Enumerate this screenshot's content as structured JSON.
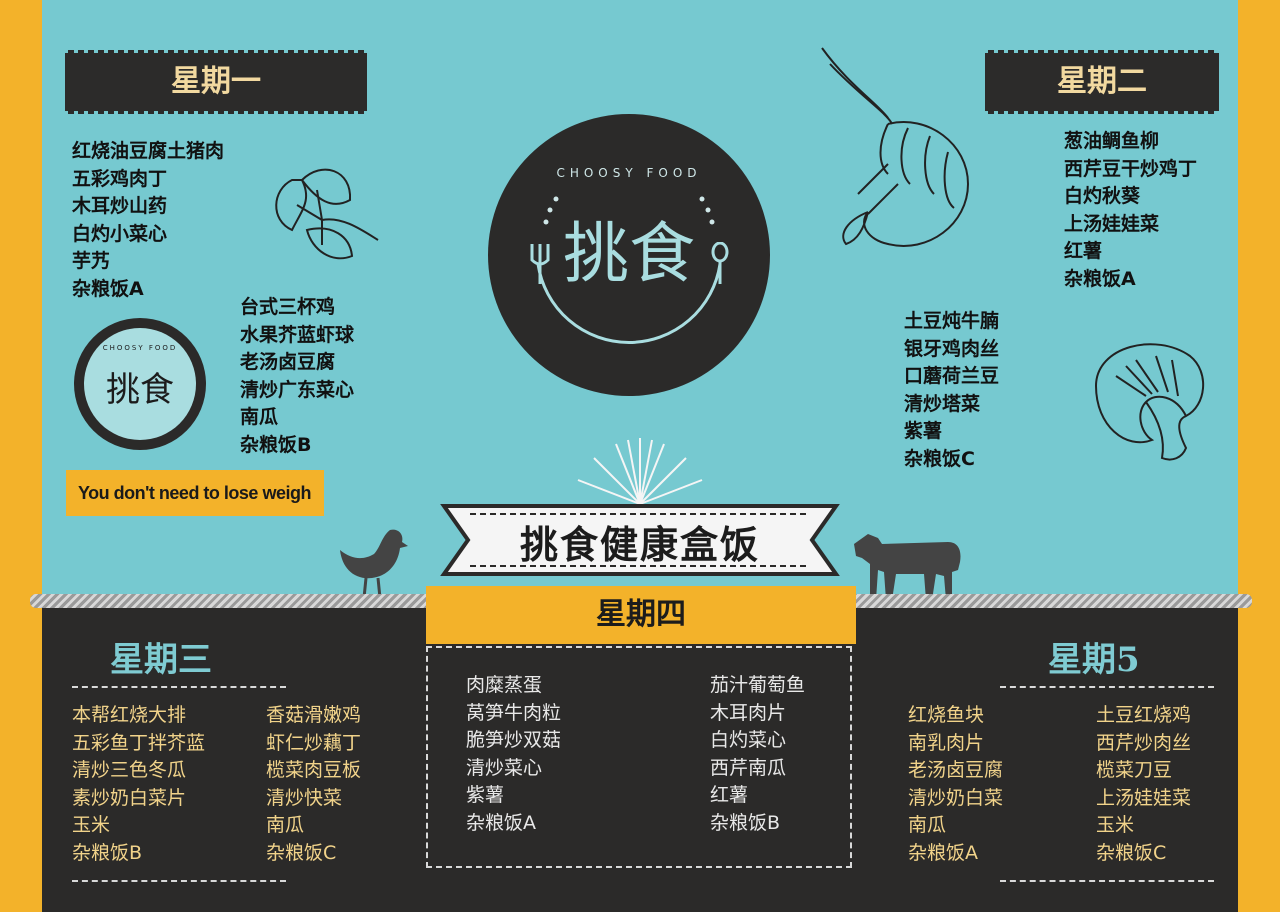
{
  "logo": {
    "brand_cn": "挑食",
    "brand_en": "CHOOSY FOOD"
  },
  "tagline": "You don't need to lose weigh",
  "title": "挑食健康盒饭",
  "monday": {
    "heading": "星期一",
    "menu_a": [
      "红烧油豆腐土猪肉",
      "五彩鸡肉丁",
      "木耳炒山药",
      "白灼小菜心",
      "芋艿",
      "杂粮饭A"
    ],
    "menu_b": [
      "台式三杯鸡",
      "水果芥蓝虾球",
      "老汤卤豆腐",
      "清炒广东菜心",
      "南瓜",
      "杂粮饭B"
    ]
  },
  "tuesday": {
    "heading": "星期二",
    "menu_a": [
      "葱油鲷鱼柳",
      "西芹豆干炒鸡丁",
      "白灼秋葵",
      "上汤娃娃菜",
      "红薯",
      "杂粮饭A"
    ],
    "menu_c": [
      "土豆炖牛腩",
      "银牙鸡肉丝",
      "口蘑荷兰豆",
      "清炒塔菜",
      "紫薯",
      "杂粮饭C"
    ]
  },
  "wednesday": {
    "heading": "星期三",
    "menu_b": [
      "本帮红烧大排",
      "五彩鱼丁拌芥蓝",
      "清炒三色冬瓜",
      "素炒奶白菜片",
      "玉米",
      "杂粮饭B"
    ],
    "menu_c": [
      "香菇滑嫩鸡",
      "虾仁炒藕丁",
      "榄菜肉豆板",
      "清炒快菜",
      "南瓜",
      "杂粮饭C"
    ]
  },
  "thursday": {
    "heading": "星期四",
    "menu_a": [
      "肉糜蒸蛋",
      "莴笋牛肉粒",
      "脆笋炒双菇",
      "清炒菜心",
      "紫薯",
      "杂粮饭A"
    ],
    "menu_b": [
      "茄汁葡萄鱼",
      "木耳肉片",
      "白灼菜心",
      "西芹南瓜",
      "红薯",
      "杂粮饭B"
    ]
  },
  "friday": {
    "heading": "星期5",
    "menu_a": [
      "红烧鱼块",
      "南乳肉片",
      "老汤卤豆腐",
      "清炒奶白菜",
      "南瓜",
      "杂粮饭A"
    ],
    "menu_c": [
      "土豆红烧鸡",
      "西芹炒肉丝",
      "榄菜刀豆",
      "上汤娃娃菜",
      "玉米",
      "杂粮饭C"
    ]
  },
  "colors": {
    "teal": "#76c9d0",
    "dark": "#2b2a29",
    "yellow": "#f3b22a",
    "cream": "#f1d38a"
  },
  "icons": [
    "parsley-icon",
    "shrimp-icon",
    "mushroom-icon",
    "hen-icon",
    "cow-icon",
    "fork-icon",
    "spoon-icon",
    "sunburst-icon"
  ]
}
